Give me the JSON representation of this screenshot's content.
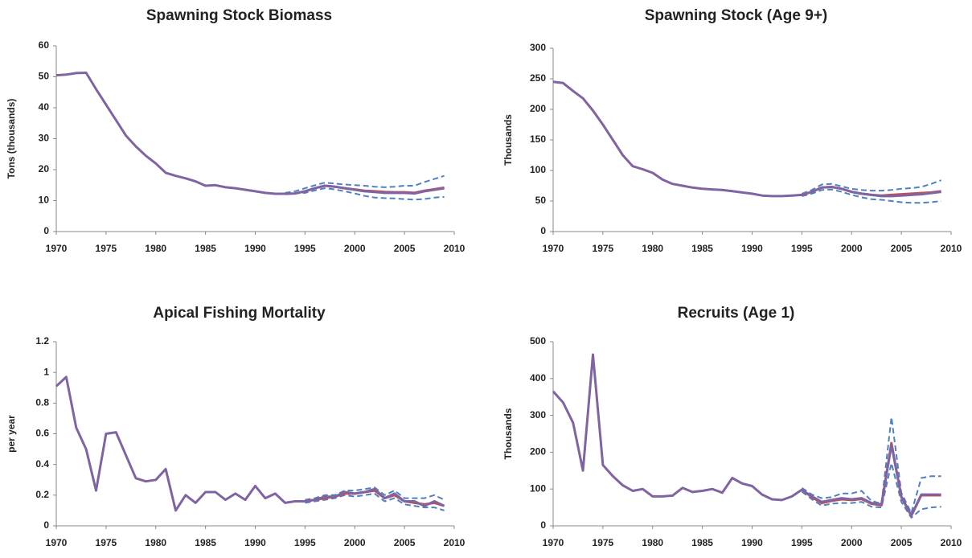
{
  "chart_data": [
    {
      "type": "line",
      "title": "Spawning Stock Biomass",
      "ylabel": "Tons (thousands)",
      "x": [
        1970,
        1971,
        1972,
        1973,
        1974,
        1975,
        1976,
        1977,
        1978,
        1979,
        1980,
        1981,
        1982,
        1983,
        1984,
        1985,
        1986,
        1987,
        1988,
        1989,
        1990,
        1991,
        1992,
        1993,
        1994,
        1995,
        1996,
        1997,
        1998,
        1999,
        2000,
        2001,
        2002,
        2003,
        2004,
        2005,
        2006,
        2007,
        2008,
        2009
      ],
      "xlim": [
        1970,
        2010
      ],
      "xticks": [
        1970,
        1975,
        1980,
        1985,
        1990,
        1995,
        2000,
        2005,
        2010
      ],
      "ylim": [
        0,
        60
      ],
      "yticks": [
        0,
        10,
        20,
        30,
        40,
        50,
        60
      ],
      "series": [
        {
          "color": "#4f81bd",
          "dashed": true,
          "values": [
            null,
            null,
            null,
            null,
            null,
            null,
            null,
            null,
            null,
            null,
            null,
            null,
            null,
            null,
            null,
            null,
            null,
            null,
            null,
            null,
            null,
            null,
            null,
            12.5,
            13,
            14,
            15,
            15.8,
            15.5,
            15.2,
            15,
            14.8,
            14.5,
            14.3,
            14.5,
            14.8,
            14.8,
            16,
            17,
            18
          ]
        },
        {
          "color": "#4f81bd",
          "dashed": true,
          "values": [
            null,
            null,
            null,
            null,
            null,
            null,
            null,
            null,
            null,
            null,
            null,
            null,
            null,
            null,
            null,
            null,
            null,
            null,
            null,
            null,
            null,
            null,
            null,
            12,
            12.3,
            12.5,
            13.3,
            14,
            13.6,
            13,
            12.3,
            11.5,
            11,
            10.8,
            10.7,
            10.5,
            10.3,
            10.5,
            11,
            11.2
          ]
        },
        {
          "color": "#c0504d",
          "dashed": false,
          "values": [
            null,
            null,
            null,
            null,
            null,
            null,
            null,
            null,
            null,
            null,
            null,
            null,
            null,
            null,
            null,
            null,
            null,
            null,
            null,
            null,
            null,
            null,
            null,
            null,
            null,
            13,
            14,
            14.8,
            14.5,
            14,
            13.6,
            13.2,
            13,
            12.8,
            12.7,
            12.7,
            12.5,
            13.2,
            13.7,
            14.2
          ]
        },
        {
          "color": "#8064a2",
          "dashed": false,
          "values": [
            50.5,
            50.7,
            51.2,
            51.3,
            46,
            41,
            36,
            31,
            27.5,
            24.5,
            22,
            19,
            18,
            17.2,
            16.2,
            14.8,
            15,
            14.3,
            14,
            13.5,
            13,
            12.5,
            12.2,
            12.2,
            12.3,
            13,
            14,
            14.8,
            14.5,
            14,
            13.5,
            13,
            12.8,
            12.5,
            12.5,
            12.5,
            12.3,
            13,
            13.5,
            14
          ]
        }
      ]
    },
    {
      "type": "line",
      "title": "Spawning Stock (Age 9+)",
      "ylabel": "Thousands",
      "x": [
        1970,
        1971,
        1972,
        1973,
        1974,
        1975,
        1976,
        1977,
        1978,
        1979,
        1980,
        1981,
        1982,
        1983,
        1984,
        1985,
        1986,
        1987,
        1988,
        1989,
        1990,
        1991,
        1992,
        1993,
        1994,
        1995,
        1996,
        1997,
        1998,
        1999,
        2000,
        2001,
        2002,
        2003,
        2004,
        2005,
        2006,
        2007,
        2008,
        2009
      ],
      "xlim": [
        1970,
        2010
      ],
      "xticks": [
        1970,
        1975,
        1980,
        1985,
        1990,
        1995,
        2000,
        2005,
        2010
      ],
      "ylim": [
        0,
        300
      ],
      "yticks": [
        0,
        50,
        100,
        150,
        200,
        250,
        300
      ],
      "series": [
        {
          "color": "#4f81bd",
          "dashed": true,
          "values": [
            null,
            null,
            null,
            null,
            null,
            null,
            null,
            null,
            null,
            null,
            null,
            null,
            null,
            null,
            null,
            null,
            null,
            null,
            null,
            null,
            null,
            null,
            null,
            null,
            null,
            62,
            68,
            77,
            78,
            74,
            70,
            68,
            67,
            67,
            68,
            70,
            71,
            73,
            78,
            84
          ]
        },
        {
          "color": "#4f81bd",
          "dashed": true,
          "values": [
            null,
            null,
            null,
            null,
            null,
            null,
            null,
            null,
            null,
            null,
            null,
            null,
            null,
            null,
            null,
            null,
            null,
            null,
            null,
            null,
            null,
            null,
            null,
            null,
            null,
            58,
            62,
            68,
            69,
            65,
            60,
            56,
            53,
            52,
            50,
            48,
            47,
            47,
            48,
            50
          ]
        },
        {
          "color": "#c0504d",
          "dashed": false,
          "values": [
            null,
            null,
            null,
            null,
            null,
            null,
            null,
            null,
            null,
            null,
            null,
            null,
            null,
            null,
            null,
            null,
            null,
            null,
            null,
            null,
            null,
            null,
            null,
            null,
            null,
            60,
            65,
            72,
            73,
            70,
            65,
            62,
            60,
            59,
            60,
            61,
            62,
            63,
            64,
            66
          ]
        },
        {
          "color": "#8064a2",
          "dashed": false,
          "values": [
            245,
            243,
            230,
            218,
            198,
            175,
            150,
            125,
            107,
            102,
            96,
            85,
            78,
            75,
            72,
            70,
            69,
            68,
            66,
            64,
            62,
            59,
            58,
            58,
            59,
            60,
            65,
            72,
            73,
            70,
            65,
            62,
            60,
            58,
            58,
            59,
            60,
            61,
            63,
            65
          ]
        }
      ]
    },
    {
      "type": "line",
      "title": "Apical Fishing Mortality",
      "ylabel": "per year",
      "x": [
        1970,
        1971,
        1972,
        1973,
        1974,
        1975,
        1976,
        1977,
        1978,
        1979,
        1980,
        1981,
        1982,
        1983,
        1984,
        1985,
        1986,
        1987,
        1988,
        1989,
        1990,
        1991,
        1992,
        1993,
        1994,
        1995,
        1996,
        1997,
        1998,
        1999,
        2000,
        2001,
        2002,
        2003,
        2004,
        2005,
        2006,
        2007,
        2008,
        2009
      ],
      "xlim": [
        1970,
        2010
      ],
      "xticks": [
        1970,
        1975,
        1980,
        1985,
        1990,
        1995,
        2000,
        2005,
        2010
      ],
      "ylim": [
        0,
        1.2
      ],
      "yticks": [
        0,
        0.2,
        0.4,
        0.6,
        0.8,
        1,
        1.2
      ],
      "series": [
        {
          "color": "#4f81bd",
          "dashed": true,
          "values": [
            null,
            null,
            null,
            null,
            null,
            null,
            null,
            null,
            null,
            null,
            null,
            null,
            null,
            null,
            null,
            null,
            null,
            null,
            null,
            null,
            null,
            null,
            null,
            null,
            null,
            0.17,
            0.18,
            0.2,
            0.2,
            0.23,
            0.23,
            0.24,
            0.25,
            0.2,
            0.23,
            0.18,
            0.18,
            0.18,
            0.2,
            0.17
          ]
        },
        {
          "color": "#4f81bd",
          "dashed": true,
          "values": [
            null,
            null,
            null,
            null,
            null,
            null,
            null,
            null,
            null,
            null,
            null,
            null,
            null,
            null,
            null,
            null,
            null,
            null,
            null,
            null,
            null,
            null,
            null,
            null,
            null,
            0.15,
            0.16,
            0.17,
            0.18,
            0.2,
            0.19,
            0.2,
            0.21,
            0.16,
            0.18,
            0.14,
            0.13,
            0.12,
            0.12,
            0.1
          ]
        },
        {
          "color": "#c0504d",
          "dashed": false,
          "values": [
            null,
            null,
            null,
            null,
            null,
            null,
            null,
            null,
            null,
            null,
            null,
            null,
            null,
            null,
            null,
            null,
            null,
            null,
            null,
            null,
            null,
            null,
            null,
            null,
            null,
            0.16,
            0.17,
            0.18,
            0.19,
            0.21,
            0.21,
            0.22,
            0.23,
            0.18,
            0.2,
            0.16,
            0.15,
            0.14,
            0.15,
            0.13
          ]
        },
        {
          "color": "#8064a2",
          "dashed": false,
          "values": [
            0.91,
            0.97,
            0.64,
            0.5,
            0.23,
            0.6,
            0.61,
            0.46,
            0.31,
            0.29,
            0.3,
            0.37,
            0.1,
            0.2,
            0.15,
            0.22,
            0.22,
            0.17,
            0.21,
            0.17,
            0.26,
            0.18,
            0.21,
            0.15,
            0.16,
            0.16,
            0.17,
            0.19,
            0.19,
            0.22,
            0.21,
            0.22,
            0.24,
            0.18,
            0.21,
            0.16,
            0.16,
            0.13,
            0.16,
            0.13
          ]
        }
      ]
    },
    {
      "type": "line",
      "title": "Recruits (Age 1)",
      "ylabel": "Thousands",
      "x": [
        1970,
        1971,
        1972,
        1973,
        1974,
        1975,
        1976,
        1977,
        1978,
        1979,
        1980,
        1981,
        1982,
        1983,
        1984,
        1985,
        1986,
        1987,
        1988,
        1989,
        1990,
        1991,
        1992,
        1993,
        1994,
        1995,
        1996,
        1997,
        1998,
        1999,
        2000,
        2001,
        2002,
        2003,
        2004,
        2005,
        2006,
        2007,
        2008,
        2009
      ],
      "xlim": [
        1970,
        2010
      ],
      "xticks": [
        1970,
        1975,
        1980,
        1985,
        1990,
        1995,
        2000,
        2005,
        2010
      ],
      "ylim": [
        0,
        500
      ],
      "yticks": [
        0,
        100,
        200,
        300,
        400,
        500
      ],
      "series": [
        {
          "color": "#4f81bd",
          "dashed": true,
          "values": [
            null,
            null,
            null,
            null,
            null,
            null,
            null,
            null,
            null,
            null,
            null,
            null,
            null,
            null,
            null,
            null,
            null,
            null,
            null,
            null,
            null,
            null,
            null,
            null,
            null,
            103,
            85,
            75,
            78,
            88,
            88,
            95,
            68,
            60,
            295,
            90,
            35,
            130,
            135,
            135
          ]
        },
        {
          "color": "#4f81bd",
          "dashed": true,
          "values": [
            null,
            null,
            null,
            null,
            null,
            null,
            null,
            null,
            null,
            null,
            null,
            null,
            null,
            null,
            null,
            null,
            null,
            null,
            null,
            null,
            null,
            null,
            null,
            null,
            null,
            93,
            72,
            55,
            60,
            62,
            62,
            65,
            52,
            50,
            170,
            65,
            22,
            45,
            50,
            52
          ]
        },
        {
          "color": "#c0504d",
          "dashed": false,
          "values": [
            null,
            null,
            null,
            null,
            null,
            null,
            null,
            null,
            null,
            null,
            null,
            null,
            null,
            null,
            null,
            null,
            null,
            null,
            null,
            null,
            null,
            null,
            null,
            null,
            null,
            98,
            78,
            62,
            68,
            72,
            70,
            73,
            60,
            56,
            225,
            78,
            27,
            83,
            83,
            83
          ]
        },
        {
          "color": "#8064a2",
          "dashed": false,
          "values": [
            365,
            335,
            280,
            150,
            465,
            165,
            135,
            110,
            95,
            100,
            80,
            80,
            82,
            103,
            92,
            95,
            100,
            90,
            130,
            115,
            108,
            85,
            72,
            70,
            80,
            98,
            80,
            65,
            70,
            75,
            72,
            75,
            62,
            58,
            220,
            80,
            28,
            85,
            85,
            85
          ]
        }
      ]
    }
  ]
}
